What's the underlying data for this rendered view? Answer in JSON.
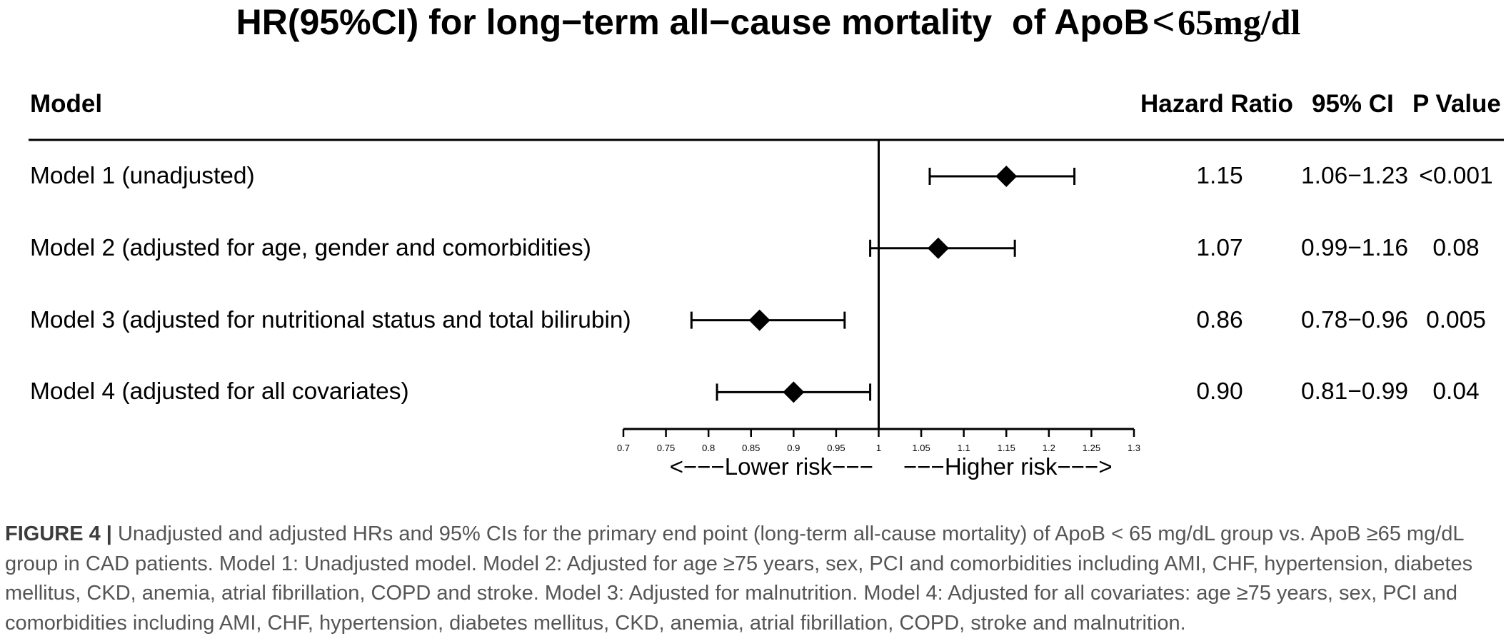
{
  "chart_data": {
    "type": "scatter",
    "title_parts": [
      "HR(95%CI) for long−term all−cause mortality  of ApoB",
      "<",
      "65mg/dl"
    ],
    "columns": {
      "model": "Model",
      "hazard_ratio": "Hazard Ratio",
      "ci": "95% CI",
      "p_value": "P Value"
    },
    "rows": [
      {
        "label": "Model 1 (unadjusted)",
        "hr": 1.15,
        "ci_low": 1.06,
        "ci_high": 1.23,
        "hr_text": "1.15",
        "ci_text": "1.06−1.23",
        "p_text": "<0.001"
      },
      {
        "label": "Model 2 (adjusted for age, gender and comorbidities)",
        "hr": 1.07,
        "ci_low": 0.99,
        "ci_high": 1.16,
        "hr_text": "1.07",
        "ci_text": "0.99−1.16",
        "p_text": "0.08"
      },
      {
        "label": "Model 3 (adjusted for nutritional status and total bilirubin)",
        "hr": 0.86,
        "ci_low": 0.78,
        "ci_high": 0.96,
        "hr_text": "0.86",
        "ci_text": "0.78−0.96",
        "p_text": "0.005"
      },
      {
        "label": "Model 4 (adjusted for all covariates)",
        "hr": 0.9,
        "ci_low": 0.81,
        "ci_high": 0.99,
        "hr_text": "0.90",
        "ci_text": "0.81−0.99",
        "p_text": "0.04"
      }
    ],
    "xlim": [
      0.7,
      1.3
    ],
    "xticks": [
      0.7,
      0.75,
      0.8,
      0.85,
      0.9,
      0.95,
      1,
      1.05,
      1.1,
      1.15,
      1.2,
      1.25,
      1.3
    ],
    "reference_line": 1,
    "direction_labels": {
      "left": "<−−−Lower risk−−−",
      "right": "−−−Higher risk−−−>"
    },
    "grid": false,
    "colors": {
      "marks": "#000000"
    }
  },
  "figure_caption": {
    "label": "FIGURE 4 |",
    "lines": [
      "Unadjusted and adjusted HRs and 95% CIs for the primary end point (long-term all-cause mortality) of ApoB < 65 mg/dL group vs. ApoB ≥65 mg/dL",
      "group in CAD patients. Model 1: Unadjusted model. Model 2: Adjusted for age ≥75 years, sex, PCI and comorbidities including AMI, CHF, hypertension, diabetes",
      "mellitus, CKD, anemia, atrial fibrillation, COPD and stroke. Model 3: Adjusted for malnutrition. Model 4: Adjusted for all covariates: age ≥75 years, sex, PCI and",
      "comorbidities including AMI, CHF, hypertension, diabetes mellitus, CKD, anemia, atrial fibrillation, COPD, stroke and malnutrition."
    ],
    "colors": {
      "label": "#3c3c3c",
      "text": "#555555"
    }
  }
}
